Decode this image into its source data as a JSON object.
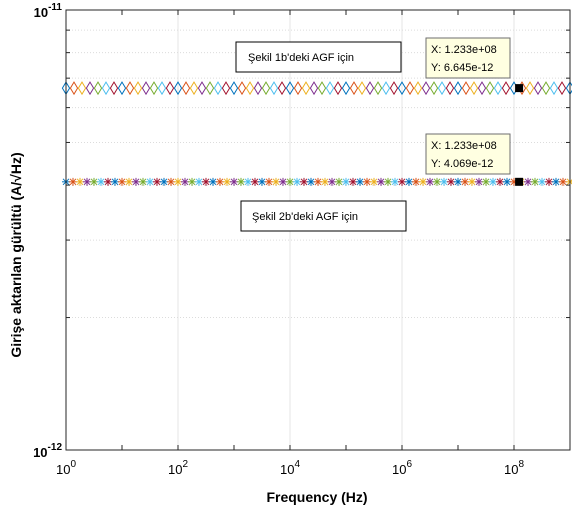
{
  "chart_data": {
    "type": "scatter",
    "title": "",
    "xlabel": "Frequency (Hz)",
    "ylabel": "Girişe aktarılan gürültü (A/√Hz)",
    "xscale": "log",
    "yscale": "log",
    "xlim": [
      1,
      1000000000
    ],
    "ylim": [
      1e-12,
      1e-11
    ],
    "grid": true,
    "x_ticks": [
      {
        "value": 1,
        "base": "10",
        "exp": "0"
      },
      {
        "value": 100,
        "base": "10",
        "exp": "2"
      },
      {
        "value": 10000,
        "base": "10",
        "exp": "4"
      },
      {
        "value": 1000000,
        "base": "10",
        "exp": "6"
      },
      {
        "value": 100000000,
        "base": "10",
        "exp": "8"
      }
    ],
    "y_ticks": [
      {
        "value": 1e-12,
        "base": "10",
        "exp": "-12"
      },
      {
        "value": 1e-11,
        "base": "10",
        "exp": "-11"
      }
    ],
    "marker_colors": [
      "#0072bd",
      "#d95319",
      "#edb120",
      "#7e2f8e",
      "#77ac30",
      "#4dbeee",
      "#a2142f"
    ],
    "series": [
      {
        "marker": "diamond",
        "y": 6.645e-12,
        "x_range": [
          1,
          1000000000
        ],
        "label": "Şekil 1b'deki AGF için"
      },
      {
        "marker": "asterisk",
        "y": 4.069e-12,
        "x_range": [
          1,
          1000000000
        ],
        "label": "Şekil 2b'deki AGF için"
      }
    ],
    "datatips": [
      {
        "x": 123300000,
        "y": 6.645e-12,
        "x_text": "X: 1.233e+08",
        "y_text": "Y: 6.645e-12"
      },
      {
        "x": 123300000,
        "y": 4.069e-12,
        "x_text": "X: 1.233e+08",
        "y_text": "Y: 4.069e-12"
      }
    ]
  }
}
